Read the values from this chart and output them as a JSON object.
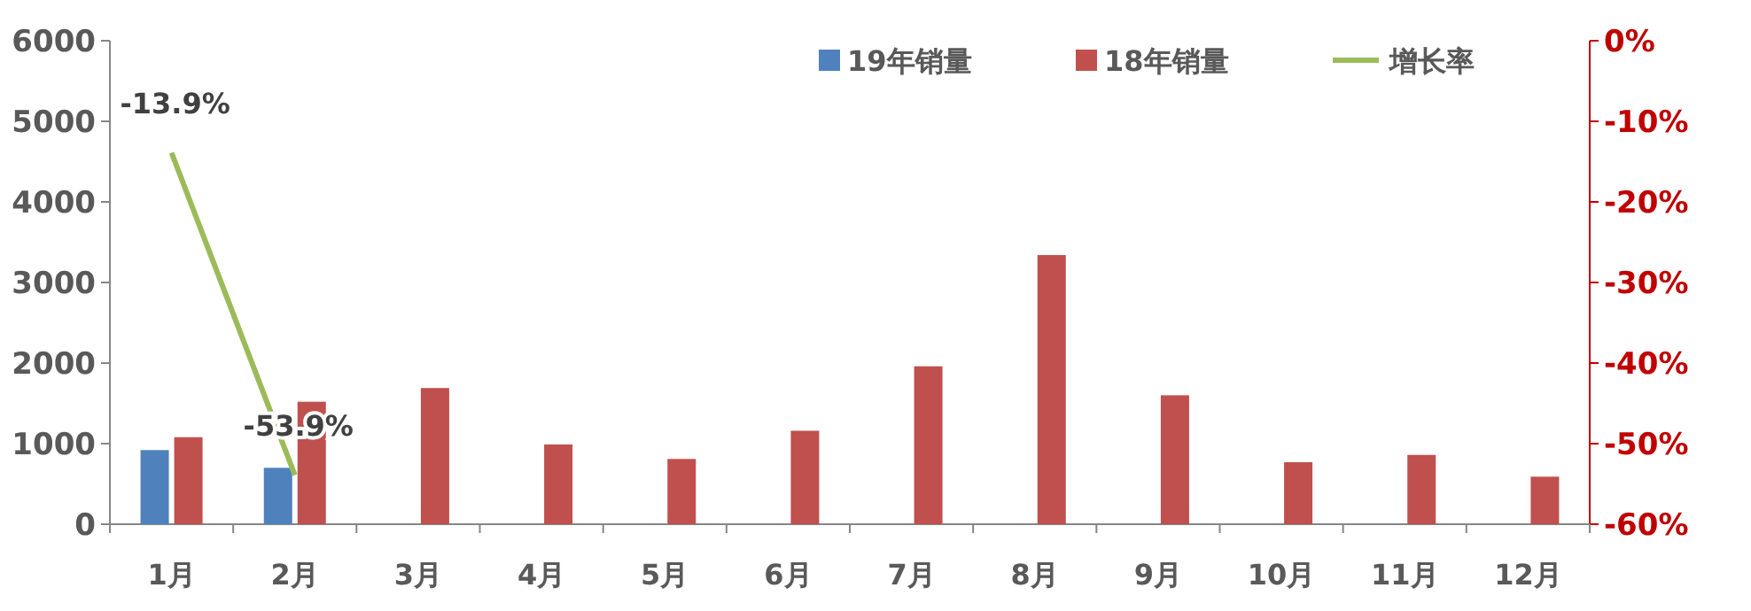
{
  "chart_data": {
    "type": "bar",
    "categories": [
      "1月",
      "2月",
      "3月",
      "4月",
      "5月",
      "6月",
      "7月",
      "8月",
      "9月",
      "10月",
      "11月",
      "12月"
    ],
    "series": [
      {
        "name": "19年销量",
        "color": "#4f81bd",
        "values": [
          920,
          700,
          null,
          null,
          null,
          null,
          null,
          null,
          null,
          null,
          null,
          null
        ]
      },
      {
        "name": "18年销量",
        "color": "#c0504d",
        "values": [
          1080,
          1520,
          1690,
          990,
          810,
          1160,
          1960,
          3340,
          1600,
          770,
          860,
          590
        ]
      },
      {
        "name": "增长率",
        "type": "line",
        "axis": "y2",
        "color": "#9bbb59",
        "values": [
          -13.9,
          -53.9,
          null,
          null,
          null,
          null,
          null,
          null,
          null,
          null,
          null,
          null
        ],
        "value_labels": [
          "-13.9%",
          "-53.9%",
          null,
          null,
          null,
          null,
          null,
          null,
          null,
          null,
          null,
          null
        ]
      }
    ],
    "ylim": [
      0,
      6000
    ],
    "yticks": [
      0,
      1000,
      2000,
      3000,
      4000,
      5000,
      6000
    ],
    "y2lim": [
      -60,
      0
    ],
    "y2ticks": [
      {
        "value": -60,
        "label": "-60%"
      },
      {
        "value": -50,
        "label": "-50%"
      },
      {
        "value": -40,
        "label": "-40%"
      },
      {
        "value": -30,
        "label": "-30%"
      },
      {
        "value": -20,
        "label": "-20%"
      },
      {
        "value": -10,
        "label": "-10%"
      },
      {
        "value": 0,
        "label": "0%"
      }
    ],
    "grid": false,
    "legend": "top right"
  }
}
